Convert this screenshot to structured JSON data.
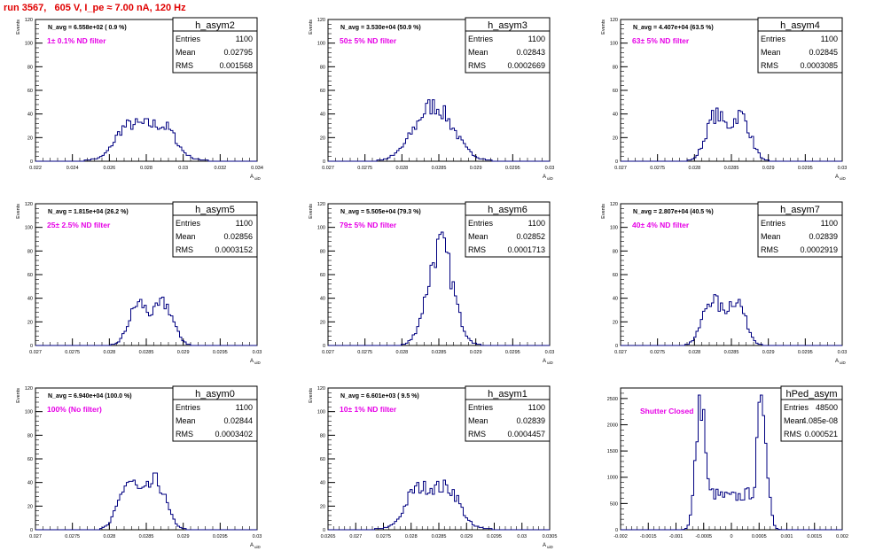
{
  "run_title": "run 3567,   605 V, I_pe ≈ 7.00 nA, 120 Hz",
  "colors": {
    "hist": "#000080",
    "magenta": "#e600e6",
    "title_red": "#e00000"
  },
  "stats_labels": {
    "entries": "Entries",
    "mean": "Mean",
    "rms": "RMS"
  },
  "chart_data": [
    {
      "type": "histogram",
      "name": "h_asym2",
      "navg": "N_avg = 6.558e+02 ( 0.9 %)",
      "filter": "1± 0.1% ND filter",
      "entries": "1100",
      "mean": "0.02795",
      "rms": "0.001568",
      "ylabel": "Events",
      "xlabel": "A_uiD",
      "xlim": [
        0.022,
        0.034
      ],
      "ylim": [
        0,
        120
      ],
      "xticks": [
        0.022,
        0.024,
        0.026,
        0.028,
        0.03,
        0.032,
        0.034
      ],
      "xtick_labels": [
        "0.022",
        "0.024",
        "0.026",
        "0.028",
        "0.03",
        "0.032",
        "0.034"
      ],
      "yticks": [
        0,
        20,
        40,
        60,
        80,
        100,
        120
      ],
      "center": 0.02795,
      "sigma": 0.0014,
      "peak": 31,
      "shape": "flat"
    },
    {
      "type": "histogram",
      "name": "h_asym3",
      "navg": "N_avg = 3.530e+04 (50.9 %)",
      "filter": "50± 5% ND filter",
      "entries": "1100",
      "mean": "0.02843",
      "rms": "0.0002669",
      "ylabel": "Events",
      "xlabel": "A_uiD",
      "xlim": [
        0.027,
        0.03
      ],
      "ylim": [
        0,
        120
      ],
      "xticks": [
        0.027,
        0.0275,
        0.028,
        0.0285,
        0.029,
        0.0295,
        0.03
      ],
      "xtick_labels": [
        "0.027",
        "0.0275",
        "0.028",
        "0.0285",
        "0.029",
        "0.0295",
        "0.03"
      ],
      "yticks": [
        0,
        20,
        40,
        60,
        80,
        100,
        120
      ],
      "center": 0.02843,
      "sigma": 0.00026,
      "peak": 47,
      "shape": "gauss"
    },
    {
      "type": "histogram",
      "name": "h_asym4",
      "navg": "N_avg = 4.407e+04 (63.5 %)",
      "filter": "63± 5% ND filter",
      "entries": "1100",
      "mean": "0.02845",
      "rms": "0.0003085",
      "ylabel": "Events",
      "xlabel": "A_uiD",
      "xlim": [
        0.027,
        0.03
      ],
      "ylim": [
        0,
        120
      ],
      "xticks": [
        0.027,
        0.0275,
        0.028,
        0.0285,
        0.029,
        0.0295,
        0.03
      ],
      "xtick_labels": [
        "0.027",
        "0.0275",
        "0.028",
        "0.0285",
        "0.029",
        "0.0295",
        "0.03"
      ],
      "yticks": [
        0,
        20,
        40,
        60,
        80,
        100,
        120
      ],
      "center": 0.02845,
      "sigma": 0.0003,
      "peak": 44,
      "shape": "double"
    },
    {
      "type": "histogram",
      "name": "h_asym5",
      "navg": "N_avg = 1.815e+04 (26.2 %)",
      "filter": "25± 2.5% ND filter",
      "entries": "1100",
      "mean": "0.02856",
      "rms": "0.0003152",
      "ylabel": "Events",
      "xlabel": "A_uiD",
      "xlim": [
        0.027,
        0.03
      ],
      "ylim": [
        0,
        120
      ],
      "xticks": [
        0.027,
        0.0275,
        0.028,
        0.0285,
        0.029,
        0.0295,
        0.03
      ],
      "xtick_labels": [
        "0.027",
        "0.0275",
        "0.028",
        "0.0285",
        "0.029",
        "0.0295",
        "0.03"
      ],
      "yticks": [
        0,
        20,
        40,
        60,
        80,
        100,
        120
      ],
      "center": 0.02856,
      "sigma": 0.0003,
      "peak": 40,
      "shape": "double"
    },
    {
      "type": "histogram",
      "name": "h_asym6",
      "navg": "N_avg = 5.505e+04 (79.3 %)",
      "filter": "79± 5% ND filter",
      "entries": "1100",
      "mean": "0.02852",
      "rms": "0.0001713",
      "ylabel": "Events",
      "xlabel": "A_uiD",
      "xlim": [
        0.027,
        0.03
      ],
      "ylim": [
        0,
        120
      ],
      "xticks": [
        0.027,
        0.0275,
        0.028,
        0.0285,
        0.029,
        0.0295,
        0.03
      ],
      "xtick_labels": [
        "0.027",
        "0.0275",
        "0.028",
        "0.0285",
        "0.029",
        "0.0295",
        "0.03"
      ],
      "yticks": [
        0,
        20,
        40,
        60,
        80,
        100,
        120
      ],
      "center": 0.02852,
      "sigma": 0.00017,
      "peak": 84,
      "shape": "gauss"
    },
    {
      "type": "histogram",
      "name": "h_asym7",
      "navg": "N_avg = 2.807e+04 (40.5 %)",
      "filter": "40± 4% ND filter",
      "entries": "1100",
      "mean": "0.02839",
      "rms": "0.0002919",
      "ylabel": "Events",
      "xlabel": "A_uiD",
      "xlim": [
        0.027,
        0.03
      ],
      "ylim": [
        0,
        120
      ],
      "xticks": [
        0.027,
        0.0275,
        0.028,
        0.0285,
        0.029,
        0.0295,
        0.03
      ],
      "xtick_labels": [
        "0.027",
        "0.0275",
        "0.028",
        "0.0285",
        "0.029",
        "0.0295",
        "0.03"
      ],
      "yticks": [
        0,
        20,
        40,
        60,
        80,
        100,
        120
      ],
      "center": 0.02839,
      "sigma": 0.00029,
      "peak": 44,
      "shape": "double"
    },
    {
      "type": "histogram",
      "name": "h_asym0",
      "navg": "N_avg = 6.940e+04 (100.0 %)",
      "filter": "100% (No filter)",
      "entries": "1100",
      "mean": "0.02844",
      "rms": "0.0003402",
      "ylabel": "Events",
      "xlabel": "A_uiD",
      "xlim": [
        0.027,
        0.03
      ],
      "ylim": [
        0,
        120
      ],
      "xticks": [
        0.027,
        0.0275,
        0.028,
        0.0285,
        0.029,
        0.0295,
        0.03
      ],
      "xtick_labels": [
        "0.027",
        "0.0275",
        "0.028",
        "0.0285",
        "0.029",
        "0.0295",
        "0.03"
      ],
      "yticks": [
        0,
        20,
        40,
        60,
        80,
        100,
        120
      ],
      "center": 0.02844,
      "sigma": 0.00032,
      "peak": 46,
      "shape": "double"
    },
    {
      "type": "histogram",
      "name": "h_asym1",
      "navg": "N_avg = 6.601e+03 ( 9.5 %)",
      "filter": "10± 1% ND filter",
      "entries": "1100",
      "mean": "0.02839",
      "rms": "0.0004457",
      "ylabel": "Events",
      "xlabel": "A_uiD",
      "xlim": [
        0.0265,
        0.0305
      ],
      "ylim": [
        0,
        120
      ],
      "xticks": [
        0.0265,
        0.027,
        0.0275,
        0.028,
        0.0285,
        0.029,
        0.0295,
        0.03,
        0.0305
      ],
      "xtick_labels": [
        "0.0265",
        "0.027",
        "0.0275",
        "0.028",
        "0.0285",
        "0.029",
        "0.0295",
        "0.03",
        "0.0305"
      ],
      "yticks": [
        0,
        20,
        40,
        60,
        80,
        100,
        120
      ],
      "center": 0.02839,
      "sigma": 0.00042,
      "peak": 36,
      "shape": "flat"
    },
    {
      "type": "histogram",
      "name": "hPed_asym",
      "navg": "",
      "filter": "Shutter Closed",
      "entries": "48500",
      "mean": "4.085e-08",
      "rms": "0.000521",
      "ylabel": "",
      "xlabel": "",
      "xlim": [
        -0.002,
        0.002
      ],
      "ylim": [
        0,
        2700
      ],
      "xticks": [
        -0.002,
        -0.0015,
        -0.001,
        -0.0005,
        0,
        0.0005,
        0.001,
        0.0015,
        0.002
      ],
      "xtick_labels": [
        "-0.002",
        "-0.0015",
        "-0.001",
        "-0.0005",
        "0",
        "0.0005",
        "0.001",
        "0.0015",
        "0.002"
      ],
      "yticks": [
        0,
        500,
        1000,
        1500,
        2000,
        2500
      ],
      "center": 0,
      "sigma": 0.000521,
      "peak": 2500,
      "shape": "pedestal"
    }
  ]
}
